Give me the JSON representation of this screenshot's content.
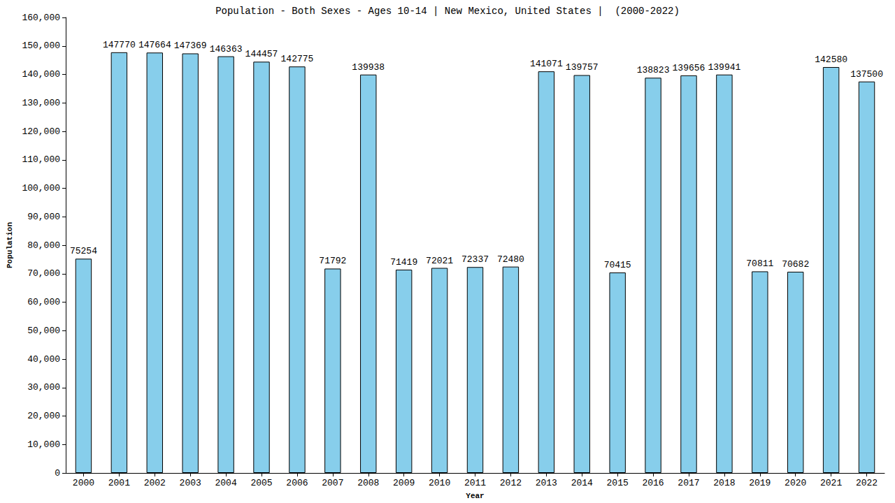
{
  "chart_data": {
    "type": "bar",
    "title": "Population - Both Sexes - Ages 10-14 | New Mexico, United States |  (2000-2022)",
    "x_label": "Year",
    "y_label": "Population",
    "categories": [
      "2000",
      "2001",
      "2002",
      "2003",
      "2004",
      "2005",
      "2006",
      "2007",
      "2008",
      "2009",
      "2010",
      "2011",
      "2012",
      "2013",
      "2014",
      "2015",
      "2016",
      "2017",
      "2018",
      "2019",
      "2020",
      "2021",
      "2022"
    ],
    "values": [
      75254,
      147770,
      147664,
      147369,
      146363,
      144457,
      142775,
      71792,
      139938,
      71419,
      72021,
      72337,
      72480,
      141071,
      139757,
      70415,
      138823,
      139656,
      139941,
      70811,
      70682,
      142580,
      137500
    ],
    "color": "#87ceeb",
    "ylim": [
      0,
      160000
    ],
    "yticks": [
      0,
      10000,
      20000,
      30000,
      40000,
      50000,
      60000,
      70000,
      80000,
      90000,
      100000,
      110000,
      120000,
      130000,
      140000,
      150000,
      160000
    ],
    "grid": false,
    "data_labels": true
  }
}
